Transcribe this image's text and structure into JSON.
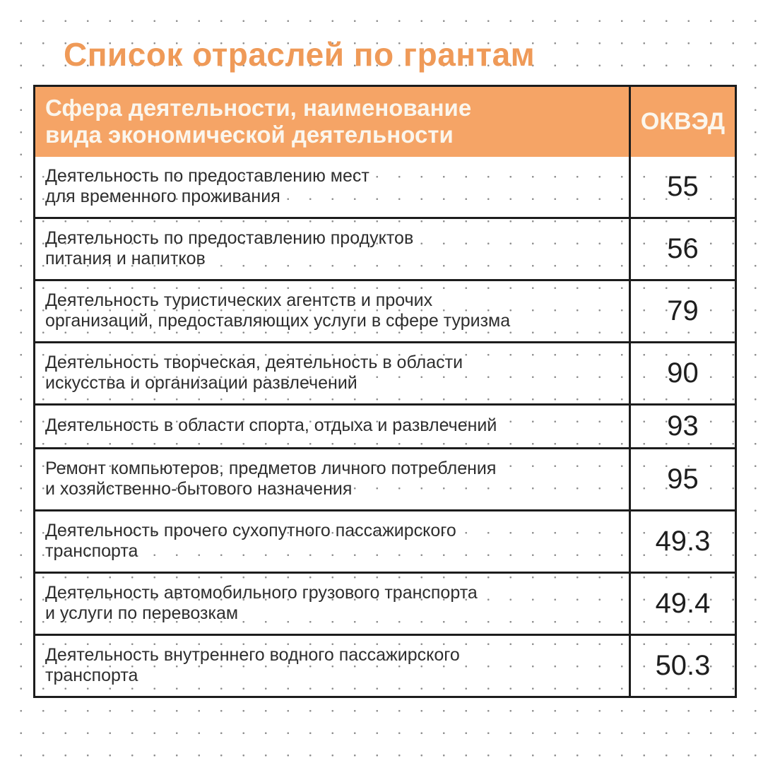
{
  "page": {
    "title": "Список отраслей по грантам"
  },
  "colors": {
    "background": "#FFFFFF",
    "dot_grid": "#8F8F8F",
    "title_accent": "#EF9A58",
    "table_header_bg": "#F5A466",
    "table_header_text": "#FBF6ED",
    "table_border": "#1C1C1C",
    "body_text": "#2E2E2E",
    "code_text": "#1E1E1E"
  },
  "table": {
    "header": {
      "activity_label": "Сфера деятельности, наименование\nвида экономической деятельности",
      "code_label": "ОКВЭД"
    },
    "rows": [
      {
        "activity": "Деятельность по предоставлению мест\nдля временного проживания",
        "code": "55"
      },
      {
        "activity": "Деятельность по предоставлению продуктов\nпитания и напитков",
        "code": "56"
      },
      {
        "activity": "Деятельность туристических агентств и прочих\nорганизаций, предоставляющих услуги в сфере туризма",
        "code": "79"
      },
      {
        "activity": "Деятельность творческая, деятельность в области\nискусства и организации развлечений",
        "code": "90"
      },
      {
        "activity": "Деятельность в области спорта, отдыха и развлечений",
        "code": "93"
      },
      {
        "activity": "Ремонт компьютеров, предметов личного потребления\nи хозяйственно-бытового назначения",
        "code": "95"
      },
      {
        "activity": "Деятельность прочего сухопутного пассажирского\nтранспорта",
        "code": "49.3"
      },
      {
        "activity": "Деятельность автомобильного грузового транспорта\nи услуги по перевозкам",
        "code": "49.4"
      },
      {
        "activity": "Деятельность внутреннего водного пассажирского\nтранспорта",
        "code": "50.3"
      }
    ]
  }
}
